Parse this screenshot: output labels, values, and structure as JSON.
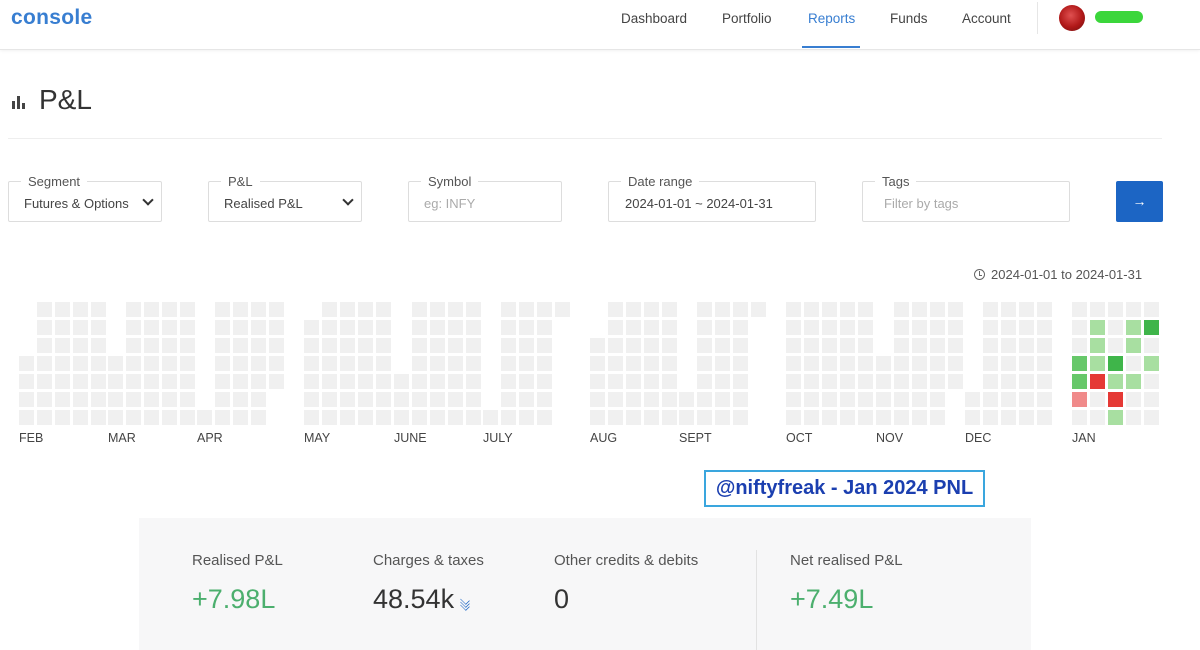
{
  "header": {
    "logo": "console",
    "nav": [
      {
        "label": "Dashboard",
        "active": false
      },
      {
        "label": "Portfolio",
        "active": false
      },
      {
        "label": "Reports",
        "active": true
      },
      {
        "label": "Funds",
        "active": false
      },
      {
        "label": "Account",
        "active": false
      }
    ],
    "accent_color": "#387ed1"
  },
  "page": {
    "title": "P&L",
    "title_icon": "bar-chart-icon"
  },
  "filters": {
    "segment": {
      "label": "Segment",
      "value": "Futures & Options"
    },
    "pnl": {
      "label": "P&L",
      "value": "Realised P&L"
    },
    "symbol": {
      "label": "Symbol",
      "placeholder": "eg: INFY"
    },
    "date_range": {
      "label": "Date range",
      "value": "2024-01-01 ~ 2024-01-31"
    },
    "tags": {
      "label": "Tags",
      "placeholder": "Filter by tags"
    },
    "submit": {
      "label": "→",
      "icon": "arrow-right-icon",
      "color": "#1c65c4"
    }
  },
  "range_note": "2024-01-01 to 2024-01-31",
  "heatmap": {
    "months": [
      "FEB",
      "MAR",
      "APR",
      "MAY",
      "JUNE",
      "JULY",
      "AUG",
      "SEPT",
      "OCT",
      "NOV",
      "DEC",
      "JAN"
    ],
    "active_month": "JAN",
    "active_weeks": [
      [
        "",
        "",
        "",
        "",
        "",
        "",
        ""
      ],
      [
        "",
        "",
        "light-green",
        "light-green",
        "light-green",
        "",
        ""
      ],
      [
        "",
        "",
        "",
        "green",
        "red",
        "",
        ""
      ],
      [
        "",
        "light-green",
        "",
        "",
        "",
        "",
        ""
      ],
      [
        "",
        "",
        "",
        "",
        "",
        "",
        ""
      ]
    ],
    "colors": {
      "empty": "#f0f0f0",
      "light-green": "#a8dfa1",
      "green": "#67c86a",
      "dark-green": "#3fb54a",
      "light-red": "#f08a8a",
      "red": "#e53935"
    }
  },
  "watermark": "@niftyfreak - Jan 2024 PNL",
  "summary": {
    "realised": {
      "label": "Realised P&L",
      "value": "+7.98L"
    },
    "charges": {
      "label": "Charges & taxes",
      "value": "48.54k",
      "icon": "stack-icon"
    },
    "other": {
      "label": "Other credits & debits",
      "value": "0"
    },
    "net": {
      "label": "Net realised P&L",
      "value": "+7.49L"
    }
  }
}
